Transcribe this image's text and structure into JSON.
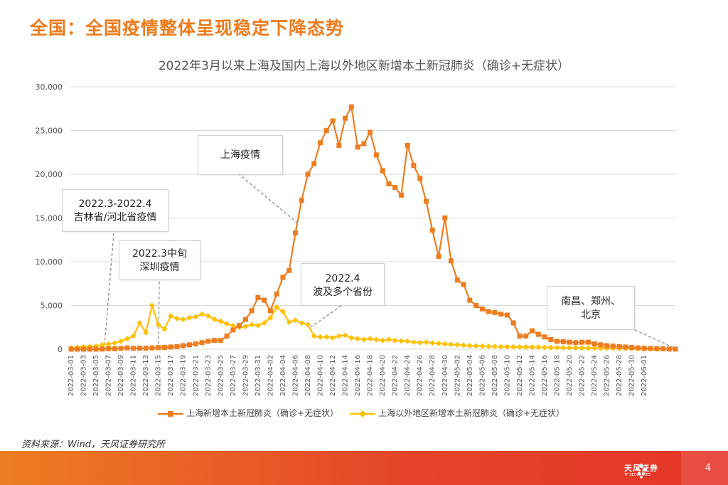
{
  "headline": "全国：全国疫情整体呈现稳定下降态势",
  "source": "资料来源：Wind，天风证券研究所",
  "page_number": "4",
  "logo": {
    "name": "天风证券",
    "sub": "TF SECURITIES"
  },
  "colors": {
    "shanghai": "#ED7D1F",
    "outside": "#FFC000",
    "headline": "#EE7B1C",
    "footer_start": "#ED7D22",
    "footer_end": "#E53628"
  },
  "annotations": [
    {
      "id": "jilin",
      "lines": [
        "2022.3-2022.4",
        "吉林省/河北省疫情"
      ]
    },
    {
      "id": "shenzhen",
      "lines": [
        "2022.3中旬",
        "深圳疫情"
      ]
    },
    {
      "id": "shanghai",
      "lines": [
        "上海疫情"
      ]
    },
    {
      "id": "multi",
      "lines": [
        "2022.4",
        "波及多个省份"
      ]
    },
    {
      "id": "nanchang",
      "lines": [
        "南昌、郑州、",
        "北京"
      ]
    }
  ],
  "chart_data": {
    "type": "line",
    "title": "2022年3月以来上海及国内上海以外地区新增本土新冠肺炎（确诊+无症状）",
    "xlabel": "",
    "ylabel": "",
    "ylim": [
      0,
      30000
    ],
    "y_ticks": [
      "0",
      "5,000",
      "10,000",
      "15,000",
      "20,000",
      "25,000",
      "30,000"
    ],
    "y_tick_values": [
      0,
      5000,
      10000,
      15000,
      20000,
      25000,
      30000
    ],
    "x_tick_labels": [
      "2022-03-01",
      "2022-03-03",
      "2022-03-05",
      "2022-03-07",
      "2022-03-09",
      "2022-03-11",
      "2022-03-13",
      "2022-03-15",
      "2022-03-17",
      "2022-03-19",
      "2022-03-21",
      "2022-03-23",
      "2022-03-25",
      "2022-03-27",
      "2022-03-29",
      "2022-03-31",
      "2022-04-02",
      "2022-04-04",
      "2022-04-06",
      "2022-04-08",
      "2022-04-10",
      "2022-04-12",
      "2022-04-14",
      "2022-04-16",
      "2022-04-18",
      "2022-04-20",
      "2022-04-22",
      "2022-04-24",
      "2022-04-26",
      "2022-04-28",
      "2022-04-30",
      "2022-05-02",
      "2022-05-04",
      "2022-05-06",
      "2022-05-08",
      "2022-05-10",
      "2022-05-12",
      "2022-05-14",
      "2022-05-16",
      "2022-05-18",
      "2022-05-20",
      "2022-05-22",
      "2022-05-24",
      "2022-05-26",
      "2022-05-28",
      "2022-05-30",
      "2022-06-01"
    ],
    "start_date": "2022-03-01",
    "series": [
      {
        "name": "上海新增本土新冠肺炎（确诊+无症状）",
        "color": "#ED7D1F",
        "marker": "square",
        "values": [
          2,
          1,
          3,
          5,
          2,
          10,
          60,
          50,
          80,
          150,
          100,
          110,
          120,
          150,
          180,
          200,
          250,
          300,
          400,
          500,
          600,
          750,
          900,
          1000,
          1000,
          1500,
          2200,
          2700,
          3400,
          4400,
          5900,
          5600,
          4400,
          6300,
          8200,
          9000,
          13300,
          17000,
          20000,
          21200,
          23600,
          25000,
          26100,
          23300,
          26400,
          27700,
          23100,
          23500,
          24800,
          22200,
          20400,
          18900,
          18500,
          17600,
          23300,
          21000,
          19500,
          16900,
          13600,
          10600,
          15000,
          10100,
          7900,
          7400,
          5600,
          5000,
          4600,
          4300,
          4200,
          4000,
          3900,
          3000,
          1500,
          1500,
          2100,
          1700,
          1400,
          1100,
          900,
          850,
          800,
          750,
          800,
          800,
          600,
          500,
          400,
          350,
          300,
          250,
          200,
          150,
          100,
          80,
          60,
          40,
          20,
          10
        ]
      },
      {
        "name": "上海以外地区新增本土新冠肺炎（确诊+无症状）",
        "color": "#FFC000",
        "marker": "diamond",
        "values": [
          150,
          200,
          250,
          300,
          350,
          500,
          600,
          700,
          900,
          1200,
          1500,
          3000,
          1900,
          5000,
          2800,
          2300,
          3800,
          3500,
          3400,
          3600,
          3700,
          4000,
          3800,
          3400,
          3200,
          2900,
          2700,
          2500,
          2600,
          2800,
          2700,
          3000,
          3600,
          4800,
          4300,
          3100,
          3300,
          3000,
          2800,
          1500,
          1400,
          1400,
          1300,
          1500,
          1600,
          1300,
          1200,
          1100,
          1200,
          1100,
          1000,
          1100,
          1000,
          950,
          900,
          800,
          750,
          800,
          700,
          650,
          600,
          550,
          500,
          450,
          400,
          380,
          350,
          320,
          300,
          280,
          270,
          260,
          250,
          240,
          230,
          220,
          200,
          190,
          180,
          170,
          160,
          150,
          140,
          130,
          120,
          110,
          100,
          90,
          80,
          70,
          60,
          50,
          45,
          40,
          35,
          30
        ]
      }
    ]
  }
}
